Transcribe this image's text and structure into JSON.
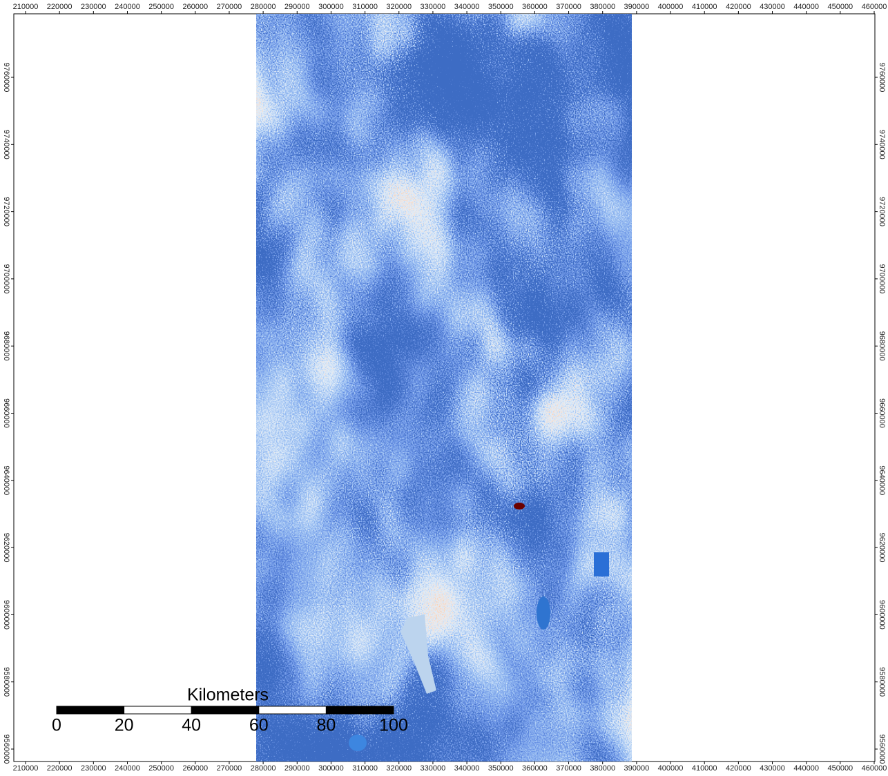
{
  "map": {
    "x_labels": [
      210000,
      220000,
      230000,
      240000,
      250000,
      260000,
      270000,
      280000,
      290000,
      300000,
      310000,
      320000,
      330000,
      340000,
      350000,
      360000,
      370000,
      380000,
      390000,
      400000,
      410000,
      420000,
      430000,
      440000,
      450000,
      460000
    ],
    "y_labels": [
      9760000,
      9740000,
      9720000,
      9700000,
      9680000,
      9660000,
      9640000,
      9620000,
      9600000,
      9580000,
      9560000
    ],
    "scale_bar": {
      "title": "Kilometers",
      "labels": [
        0,
        20,
        40,
        60,
        80,
        100
      ]
    }
  }
}
